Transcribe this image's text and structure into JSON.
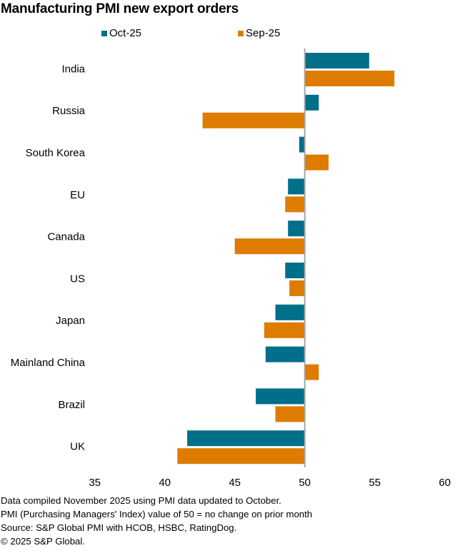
{
  "title": "Manufacturing PMI new export orders",
  "colors": {
    "oct": "#006F89",
    "sep": "#DD7C00",
    "axis": "#A6A6A6"
  },
  "chart_data": {
    "type": "bar",
    "orientation": "horizontal",
    "title": "Manufacturing PMI new export orders",
    "xlabel": "",
    "ylabel": "",
    "xlim": [
      35,
      60
    ],
    "baseline": 50,
    "x_ticks": [
      "35",
      "40",
      "45",
      "50",
      "55",
      "60"
    ],
    "x_tick_values": [
      35,
      40,
      45,
      50,
      55,
      60
    ],
    "grid": false,
    "legend_position": "top",
    "categories": [
      "India",
      "Russia",
      "South Korea",
      "EU",
      "Canada",
      "US",
      "Japan",
      "Mainland China",
      "Brazil",
      "UK"
    ],
    "series": [
      {
        "name": "Oct-25",
        "color": "#006F89",
        "values": [
          54.6,
          51.0,
          49.6,
          48.8,
          48.8,
          48.6,
          47.9,
          47.2,
          46.5,
          41.6
        ]
      },
      {
        "name": "Sep-25",
        "color": "#DD7C00",
        "values": [
          56.4,
          42.7,
          51.7,
          48.6,
          45.0,
          48.9,
          47.1,
          51.0,
          47.9,
          40.9
        ]
      }
    ]
  },
  "footer": {
    "lines": [
      "Data compiled November 2025 using PMI data updated to October.",
      "PMI (Purchasing Managers' Index) value of 50 = no change on prior month",
      "Source: S&P Global PMI with HCOB, HSBC, RatingDog.",
      "© 2025 S&P Global."
    ]
  }
}
